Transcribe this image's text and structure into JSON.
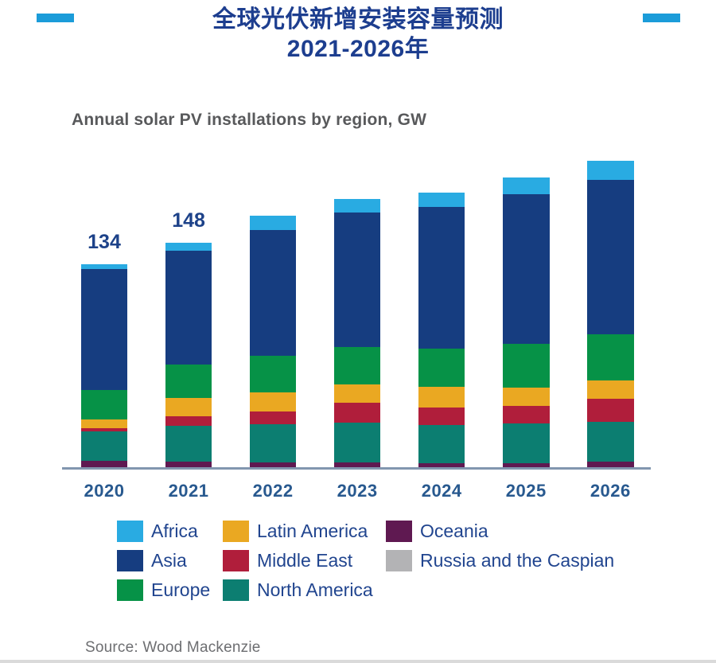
{
  "header": {
    "title_line1": "全球光伏新增安装容量预测",
    "title_line2": "2021-2026年",
    "title_color": "#1D3E8F",
    "accent_color": "#1B9CD9"
  },
  "chart_data": {
    "type": "bar",
    "stacked": true,
    "title": "Annual solar PV installations by region, GW",
    "categories": [
      "2020",
      "2021",
      "2022",
      "2023",
      "2024",
      "2025",
      "2026"
    ],
    "series": [
      {
        "name": "Russia and the Caspian",
        "color": "#B3B3B5",
        "values": [
          0,
          0,
          0,
          0,
          0,
          0,
          0
        ]
      },
      {
        "name": "Oceania",
        "color": "#5F1951",
        "values": [
          4,
          3.5,
          3,
          3,
          2.5,
          2.5,
          3.5
        ]
      },
      {
        "name": "North America",
        "color": "#0C7E71",
        "values": [
          19.5,
          24,
          25.5,
          26.5,
          25.5,
          26.5,
          26.5
        ]
      },
      {
        "name": "Middle East",
        "color": "#B01E3B",
        "values": [
          2,
          6,
          8.5,
          13,
          11.5,
          11.5,
          15
        ]
      },
      {
        "name": "Latin America",
        "color": "#EAA822",
        "values": [
          6,
          12,
          12.5,
          12,
          13.5,
          12,
          12.5
        ]
      },
      {
        "name": "Europe",
        "color": "#069247",
        "values": [
          19.5,
          22,
          24,
          25,
          25.5,
          29,
          30
        ]
      },
      {
        "name": "Asia",
        "color": "#163D80",
        "values": [
          80,
          75.5,
          83,
          88.5,
          93,
          98.5,
          102
        ]
      },
      {
        "name": "Africa",
        "color": "#29ABE2",
        "values": [
          3,
          5,
          9.5,
          9,
          9.5,
          11,
          12.5
        ]
      }
    ],
    "totals": [
      134,
      148,
      166,
      177,
      181,
      191,
      202
    ],
    "bar_labels": [
      "134",
      "148",
      "",
      "",
      "",
      "",
      ""
    ],
    "xlabel": "",
    "ylabel": "",
    "grid": false,
    "legend_position": "bottom",
    "axis_line_color": "#8296AF",
    "units": "GW"
  },
  "legend": {
    "items": [
      {
        "label": "Africa",
        "color": "#29ABE2"
      },
      {
        "label": "Asia",
        "color": "#163D80"
      },
      {
        "label": "Europe",
        "color": "#069247"
      },
      {
        "label": "Latin America",
        "color": "#EAA822"
      },
      {
        "label": "Middle East",
        "color": "#B01E3B"
      },
      {
        "label": "North America",
        "color": "#0C7E71"
      },
      {
        "label": "Oceania",
        "color": "#5F1951"
      },
      {
        "label": "Russia and the Caspian",
        "color": "#B3B3B5"
      }
    ]
  },
  "footer": {
    "source": "Source: Wood Mackenzie"
  }
}
